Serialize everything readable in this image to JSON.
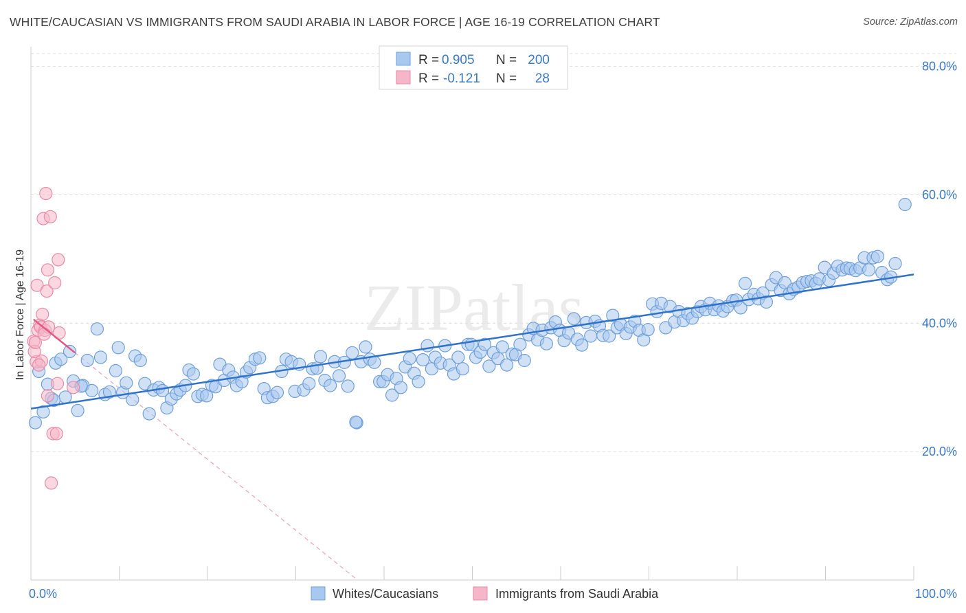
{
  "title": "WHITE/CAUCASIAN VS IMMIGRANTS FROM SAUDI ARABIA IN LABOR FORCE | AGE 16-19 CORRELATION CHART",
  "source": "Source: ZipAtlas.com",
  "watermark": "ZIPatlas",
  "colors": {
    "blue_fill": "#a9c8ef",
    "blue_stroke": "#6f9fd8",
    "blue_line": "#2f72c9",
    "pink_fill": "#f6b6c9",
    "pink_stroke": "#e98aa7",
    "pink_line": "#e05a86",
    "tick_text": "#3b78c3",
    "grid": "#dddddd"
  },
  "legend": {
    "rows": [
      {
        "r_label": "R =",
        "r_value": "0.905",
        "n_label": "N =",
        "n_value": "200"
      },
      {
        "r_label": "R =",
        "r_value": "-0.121",
        "n_label": "N =",
        "n_value": "28"
      }
    ]
  },
  "bottom_legend": [
    "Whites/Caucasians",
    "Immigrants from Saudi Arabia"
  ],
  "chart_data": {
    "type": "scatter",
    "title": "WHITE/CAUCASIAN VS IMMIGRANTS FROM SAUDI ARABIA IN LABOR FORCE | AGE 16-19 CORRELATION CHART",
    "xlabel": "",
    "ylabel": "In Labor Force | Age 16-19",
    "xlim": [
      0,
      100
    ],
    "ylim": [
      0,
      82
    ],
    "x_tick_labels": [
      "0.0%",
      "100.0%"
    ],
    "y_ticks": [
      20,
      40,
      60,
      80
    ],
    "y_tick_labels": [
      "20.0%",
      "40.0%",
      "60.0%",
      "80.0%"
    ],
    "grid": true,
    "legend_position": "top-center",
    "series": [
      {
        "name": "Whites/Caucasians",
        "color": "#a9c8ef",
        "trend": {
          "x": [
            0,
            100
          ],
          "y": [
            26.7,
            47.6
          ]
        },
        "points": [
          [
            0.5,
            24.5
          ],
          [
            1.4,
            26.2
          ],
          [
            0.9,
            32.5
          ],
          [
            1.9,
            30.5
          ],
          [
            2.3,
            28.3
          ],
          [
            2.8,
            33.8
          ],
          [
            3.4,
            34.4
          ],
          [
            3.9,
            28.5
          ],
          [
            4.4,
            35.6
          ],
          [
            4.8,
            31.0
          ],
          [
            5.3,
            26.4
          ],
          [
            5.9,
            30.3
          ],
          [
            6.4,
            34.2
          ],
          [
            6.9,
            29.5
          ],
          [
            7.5,
            39.1
          ],
          [
            7.9,
            34.7
          ],
          [
            8.4,
            28.9
          ],
          [
            8.9,
            29.3
          ],
          [
            9.6,
            32.6
          ],
          [
            9.9,
            36.2
          ],
          [
            10.4,
            29.2
          ],
          [
            10.8,
            30.7
          ],
          [
            11.5,
            28.1
          ],
          [
            11.8,
            34.9
          ],
          [
            12.4,
            34.2
          ],
          [
            12.9,
            30.6
          ],
          [
            13.4,
            25.9
          ],
          [
            13.9,
            29.6
          ],
          [
            14.5,
            30.0
          ],
          [
            14.9,
            29.5
          ],
          [
            15.4,
            26.8
          ],
          [
            15.9,
            28.2
          ],
          [
            16.5,
            29.0
          ],
          [
            16.9,
            29.6
          ],
          [
            17.5,
            30.3
          ],
          [
            17.9,
            32.7
          ],
          [
            18.4,
            32.1
          ],
          [
            18.9,
            28.6
          ],
          [
            19.4,
            28.9
          ],
          [
            19.9,
            28.7
          ],
          [
            20.5,
            30.3
          ],
          [
            20.9,
            30.1
          ],
          [
            21.4,
            33.6
          ],
          [
            21.9,
            31.1
          ],
          [
            22.4,
            32.7
          ],
          [
            22.9,
            31.6
          ],
          [
            23.3,
            30.3
          ],
          [
            23.9,
            30.9
          ],
          [
            24.4,
            32.4
          ],
          [
            24.8,
            33.1
          ],
          [
            25.4,
            34.4
          ],
          [
            25.9,
            34.6
          ],
          [
            26.4,
            29.8
          ],
          [
            26.8,
            28.4
          ],
          [
            27.4,
            28.6
          ],
          [
            27.9,
            29.2
          ],
          [
            28.4,
            32.5
          ],
          [
            28.9,
            34.4
          ],
          [
            29.5,
            34.0
          ],
          [
            29.9,
            29.4
          ],
          [
            30.4,
            33.6
          ],
          [
            30.9,
            29.6
          ],
          [
            31.5,
            30.6
          ],
          [
            31.9,
            32.9
          ],
          [
            32.4,
            33.0
          ],
          [
            32.8,
            34.8
          ],
          [
            33.3,
            31.1
          ],
          [
            33.9,
            30.3
          ],
          [
            34.4,
            34.0
          ],
          [
            34.9,
            31.8
          ],
          [
            35.5,
            33.9
          ],
          [
            35.9,
            30.2
          ],
          [
            36.4,
            35.4
          ],
          [
            36.9,
            24.5
          ],
          [
            37.4,
            34.0
          ],
          [
            37.9,
            36.3
          ],
          [
            38.4,
            34.4
          ],
          [
            38.9,
            33.9
          ],
          [
            39.5,
            30.9
          ],
          [
            39.9,
            30.9
          ],
          [
            40.4,
            32.0
          ],
          [
            40.9,
            28.8
          ],
          [
            41.4,
            31.4
          ],
          [
            41.9,
            30.0
          ],
          [
            42.4,
            33.2
          ],
          [
            42.9,
            34.5
          ],
          [
            43.4,
            32.2
          ],
          [
            43.9,
            30.9
          ],
          [
            44.4,
            34.3
          ],
          [
            44.9,
            36.5
          ],
          [
            45.4,
            32.9
          ],
          [
            45.8,
            34.7
          ],
          [
            46.4,
            33.8
          ],
          [
            46.9,
            36.5
          ],
          [
            47.4,
            33.5
          ],
          [
            47.9,
            32.1
          ],
          [
            48.4,
            34.7
          ],
          [
            48.9,
            32.9
          ],
          [
            49.5,
            36.7
          ],
          [
            49.9,
            36.7
          ],
          [
            50.4,
            34.7
          ],
          [
            50.9,
            35.5
          ],
          [
            51.4,
            36.7
          ],
          [
            51.9,
            33.3
          ],
          [
            52.4,
            35.4
          ],
          [
            52.9,
            34.5
          ],
          [
            53.4,
            36.3
          ],
          [
            53.9,
            33.5
          ],
          [
            54.5,
            35.2
          ],
          [
            54.9,
            35.1
          ],
          [
            55.4,
            36.7
          ],
          [
            55.9,
            34.2
          ],
          [
            56.4,
            38.2
          ],
          [
            56.9,
            39.2
          ],
          [
            57.4,
            37.4
          ],
          [
            57.9,
            38.9
          ],
          [
            58.4,
            36.8
          ],
          [
            58.9,
            39.3
          ],
          [
            59.4,
            40.2
          ],
          [
            59.9,
            38.9
          ],
          [
            60.4,
            37.3
          ],
          [
            60.9,
            38.5
          ],
          [
            61.5,
            40.7
          ],
          [
            61.9,
            37.5
          ],
          [
            62.4,
            36.6
          ],
          [
            62.9,
            40.1
          ],
          [
            63.4,
            38.0
          ],
          [
            63.9,
            40.3
          ],
          [
            64.4,
            39.6
          ],
          [
            64.8,
            38.1
          ],
          [
            65.5,
            38.0
          ],
          [
            65.9,
            41.2
          ],
          [
            66.4,
            39.3
          ],
          [
            66.8,
            39.8
          ],
          [
            67.4,
            38.4
          ],
          [
            67.9,
            39.4
          ],
          [
            68.4,
            40.3
          ],
          [
            68.9,
            38.9
          ],
          [
            69.4,
            37.4
          ],
          [
            69.9,
            39.0
          ],
          [
            70.4,
            43.0
          ],
          [
            70.9,
            41.8
          ],
          [
            71.4,
            43.1
          ],
          [
            71.9,
            39.3
          ],
          [
            72.4,
            42.6
          ],
          [
            72.9,
            40.2
          ],
          [
            73.4,
            41.8
          ],
          [
            73.9,
            40.4
          ],
          [
            74.4,
            41.5
          ],
          [
            74.9,
            40.8
          ],
          [
            75.5,
            41.8
          ],
          [
            75.9,
            42.6
          ],
          [
            76.4,
            42.1
          ],
          [
            76.9,
            43.1
          ],
          [
            77.4,
            42.1
          ],
          [
            77.9,
            42.7
          ],
          [
            78.4,
            41.9
          ],
          [
            78.9,
            42.6
          ],
          [
            79.5,
            43.5
          ],
          [
            79.9,
            43.6
          ],
          [
            80.4,
            42.4
          ],
          [
            80.9,
            46.2
          ],
          [
            81.3,
            43.7
          ],
          [
            81.9,
            44.5
          ],
          [
            82.4,
            43.8
          ],
          [
            82.9,
            44.7
          ],
          [
            83.3,
            43.3
          ],
          [
            83.9,
            46.0
          ],
          [
            84.4,
            47.1
          ],
          [
            84.9,
            45.1
          ],
          [
            85.4,
            46.3
          ],
          [
            85.9,
            44.6
          ],
          [
            86.4,
            45.3
          ],
          [
            86.9,
            45.6
          ],
          [
            87.4,
            46.3
          ],
          [
            87.9,
            46.5
          ],
          [
            88.4,
            46.6
          ],
          [
            88.9,
            46.2
          ],
          [
            89.3,
            46.9
          ],
          [
            89.9,
            48.7
          ],
          [
            90.4,
            46.7
          ],
          [
            90.9,
            47.8
          ],
          [
            91.4,
            48.9
          ],
          [
            91.9,
            48.3
          ],
          [
            92.4,
            48.6
          ],
          [
            92.8,
            48.5
          ],
          [
            93.4,
            48.2
          ],
          [
            93.9,
            48.6
          ],
          [
            94.4,
            50.2
          ],
          [
            94.9,
            48.3
          ],
          [
            95.4,
            50.2
          ],
          [
            95.9,
            50.4
          ],
          [
            96.4,
            47.9
          ],
          [
            97.0,
            46.8
          ],
          [
            97.4,
            47.2
          ],
          [
            97.9,
            49.3
          ],
          [
            99.0,
            58.5
          ],
          [
            36.8,
            24.6
          ],
          [
            2.6,
            28.0
          ],
          [
            5.7,
            30.2
          ]
        ]
      },
      {
        "name": "Immigrants from Saudi Arabia",
        "color": "#f6b6c9",
        "trend": {
          "x": [
            0.3,
            5.0
          ],
          "y": [
            40.6,
            35.4
          ]
        },
        "points": [
          [
            0.3,
            37.2
          ],
          [
            0.6,
            34.0
          ],
          [
            0.7,
            45.9
          ],
          [
            0.8,
            38.9
          ],
          [
            1.0,
            39.7
          ],
          [
            1.1,
            39.4
          ],
          [
            1.2,
            34.1
          ],
          [
            1.3,
            41.4
          ],
          [
            1.4,
            56.3
          ],
          [
            1.6,
            38.9
          ],
          [
            1.7,
            60.2
          ],
          [
            1.8,
            45.0
          ],
          [
            1.9,
            48.3
          ],
          [
            1.9,
            28.7
          ],
          [
            2.0,
            39.4
          ],
          [
            2.2,
            56.6
          ],
          [
            2.3,
            15.1
          ],
          [
            2.5,
            22.8
          ],
          [
            2.7,
            46.3
          ],
          [
            2.9,
            22.8
          ],
          [
            3.0,
            30.6
          ],
          [
            3.1,
            49.9
          ],
          [
            3.2,
            38.5
          ],
          [
            0.4,
            35.6
          ],
          [
            0.5,
            37.0
          ],
          [
            0.9,
            33.5
          ],
          [
            1.5,
            38.3
          ],
          [
            4.8,
            30.0
          ]
        ]
      }
    ]
  }
}
